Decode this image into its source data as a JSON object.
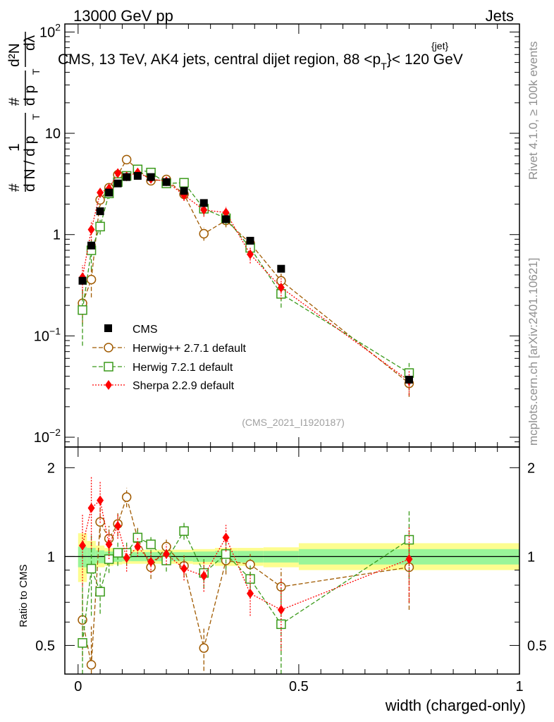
{
  "header": {
    "left": "13000 GeV pp",
    "right": "Jets",
    "title": "CMS, 13 TeV, AK4 jets, central dijet region, 88 <p",
    "title_sup": "{jet}",
    "title_sub": "T",
    "title_tail": "}< 120 GeV"
  },
  "side_labels": {
    "rivet": "Rivet 4.1.0, ≥ 100k events",
    "mcplots": "mcplots.cern.ch [arXiv:2401.10621]"
  },
  "analysis_tag": "(CMS_2021_I1920187)",
  "ylabel_main": {
    "hash": "#",
    "one": "1",
    "dN": "d N / d p",
    "T1": "T",
    "hash2": "#",
    "dp": "d p",
    "T2": "T",
    "d2N": "d²N",
    "dlambda": "dλ"
  },
  "ylabel_ratio": "Ratio to CMS",
  "xlabel": "width (charged-only)",
  "colors": {
    "cms": "#000000",
    "herwigpp": "#a05a00",
    "herwig7": "#3a9a1a",
    "sherpa": "#ff0000",
    "band_inner": "#99f599",
    "band_outer": "#fdfd8f"
  },
  "chart_data": [
    {
      "type": "scatter",
      "title": "CMS, 13 TeV, AK4 jets, central dijet region, 88 < pT jet < 120 GeV",
      "xlabel": "",
      "ylabel": "1/dN/dpT d2N/dpT dlambda",
      "yscale": "log",
      "ylim": [
        0.008,
        120
      ],
      "xlim": [
        -0.03,
        1.0
      ],
      "yticks": [
        {
          "value": 0.01,
          "base": "10",
          "exp": "−2"
        },
        {
          "value": 0.1,
          "base": "10",
          "exp": "−1"
        },
        {
          "value": 1,
          "base": "1",
          "exp": ""
        },
        {
          "value": 10,
          "base": "10",
          "exp": ""
        },
        {
          "value": 100,
          "base": "10",
          "exp": "2"
        }
      ],
      "legend": {
        "position": "middle-left",
        "entries": [
          "CMS",
          "Herwig++ 2.7.1 default",
          "Herwig 7.2.1 default",
          "Sherpa 2.2.9 default"
        ]
      },
      "x": [
        0.01,
        0.03,
        0.05,
        0.07,
        0.09,
        0.11,
        0.135,
        0.165,
        0.2,
        0.24,
        0.285,
        0.335,
        0.39,
        0.46,
        0.75
      ],
      "series": [
        {
          "name": "CMS",
          "marker": "filled-square",
          "values": [
            0.35,
            0.78,
            1.7,
            2.6,
            3.2,
            3.7,
            3.8,
            3.7,
            3.3,
            2.7,
            2.05,
            1.42,
            0.87,
            0.46,
            0.037
          ],
          "err": [
            0,
            0,
            0,
            0,
            0,
            0,
            0,
            0,
            0,
            0,
            0,
            0,
            0,
            0,
            0
          ]
        },
        {
          "name": "Herwig++ 2.7.1 default",
          "marker": "open-circle",
          "values": [
            0.21,
            0.36,
            2.2,
            2.9,
            3.9,
            5.5,
            4.4,
            3.4,
            3.5,
            2.5,
            1.02,
            1.38,
            0.82,
            0.35,
            0.034
          ],
          "err": [
            0.08,
            0.12,
            0.3,
            0.3,
            0.3,
            0.4,
            0.3,
            0.3,
            0.3,
            0.3,
            0.15,
            0.2,
            0.12,
            0.07,
            0.009
          ]
        },
        {
          "name": "Herwig 7.2.1 default",
          "marker": "open-square",
          "values": [
            0.18,
            0.7,
            1.2,
            2.55,
            3.3,
            3.8,
            4.4,
            4.1,
            3.2,
            3.25,
            1.8,
            1.45,
            0.74,
            0.26,
            0.043
          ],
          "err": [
            0.1,
            0.25,
            0.2,
            0.3,
            0.3,
            0.3,
            0.3,
            0.3,
            0.3,
            0.3,
            0.25,
            0.2,
            0.12,
            0.07,
            0.011
          ]
        },
        {
          "name": "Sherpa 2.2.9 default",
          "marker": "filled-diamond",
          "values": [
            0.38,
            1.12,
            2.6,
            2.85,
            4.05,
            3.75,
            4.1,
            3.55,
            3.35,
            2.45,
            1.75,
            1.65,
            0.64,
            0.3,
            0.036
          ],
          "err": [
            0.12,
            0.25,
            0.3,
            0.3,
            0.3,
            0.3,
            0.3,
            0.3,
            0.3,
            0.3,
            0.25,
            0.22,
            0.12,
            0.07,
            0.01
          ]
        }
      ]
    },
    {
      "type": "scatter",
      "title": "",
      "xlabel": "width (charged-only)",
      "ylabel": "Ratio to CMS",
      "yscale": "log",
      "ylim": [
        0.4,
        2.35
      ],
      "xlim": [
        -0.03,
        1.0
      ],
      "yticks": [
        0.5,
        1,
        2
      ],
      "xticks": [
        {
          "value": 0,
          "label": "0"
        },
        {
          "value": 0.5,
          "label": "0.5"
        },
        {
          "value": 1,
          "label": "1"
        }
      ],
      "reference_line": 1,
      "bands": [
        {
          "x0": 0.0,
          "x1": 0.02,
          "inner": [
            0.92,
            1.08
          ],
          "outer": [
            0.82,
            1.2
          ]
        },
        {
          "x0": 0.02,
          "x1": 0.04,
          "inner": [
            0.93,
            1.07
          ],
          "outer": [
            0.88,
            1.13
          ]
        },
        {
          "x0": 0.04,
          "x1": 0.06,
          "inner": [
            0.95,
            1.05
          ],
          "outer": [
            0.92,
            1.09
          ]
        },
        {
          "x0": 0.06,
          "x1": 0.08,
          "inner": [
            0.96,
            1.04
          ],
          "outer": [
            0.93,
            1.07
          ]
        },
        {
          "x0": 0.08,
          "x1": 0.1,
          "inner": [
            0.96,
            1.04
          ],
          "outer": [
            0.94,
            1.06
          ]
        },
        {
          "x0": 0.1,
          "x1": 0.12,
          "inner": [
            0.965,
            1.035
          ],
          "outer": [
            0.945,
            1.055
          ]
        },
        {
          "x0": 0.12,
          "x1": 0.15,
          "inner": [
            0.965,
            1.035
          ],
          "outer": [
            0.945,
            1.055
          ]
        },
        {
          "x0": 0.15,
          "x1": 0.18,
          "inner": [
            0.965,
            1.035
          ],
          "outer": [
            0.945,
            1.055
          ]
        },
        {
          "x0": 0.18,
          "x1": 0.22,
          "inner": [
            0.965,
            1.035
          ],
          "outer": [
            0.945,
            1.055
          ]
        },
        {
          "x0": 0.22,
          "x1": 0.26,
          "inner": [
            0.965,
            1.035
          ],
          "outer": [
            0.945,
            1.055
          ]
        },
        {
          "x0": 0.26,
          "x1": 0.31,
          "inner": [
            0.96,
            1.04
          ],
          "outer": [
            0.94,
            1.06
          ]
        },
        {
          "x0": 0.31,
          "x1": 0.36,
          "inner": [
            0.955,
            1.045
          ],
          "outer": [
            0.93,
            1.07
          ]
        },
        {
          "x0": 0.36,
          "x1": 0.42,
          "inner": [
            0.955,
            1.045
          ],
          "outer": [
            0.93,
            1.07
          ]
        },
        {
          "x0": 0.42,
          "x1": 0.5,
          "inner": [
            0.955,
            1.045
          ],
          "outer": [
            0.92,
            1.075
          ]
        },
        {
          "x0": 0.5,
          "x1": 1.0,
          "inner": [
            0.94,
            1.06
          ],
          "outer": [
            0.9,
            1.11
          ]
        }
      ],
      "x": [
        0.01,
        0.03,
        0.05,
        0.07,
        0.09,
        0.11,
        0.135,
        0.165,
        0.2,
        0.24,
        0.285,
        0.335,
        0.39,
        0.46,
        0.75
      ],
      "series": [
        {
          "name": "Herwig++ 2.7.1 default",
          "marker": "open-circle",
          "values": [
            0.61,
            0.43,
            1.31,
            1.15,
            1.29,
            1.59,
            1.15,
            0.92,
            1.08,
            0.93,
            0.49,
            0.97,
            0.94,
            0.79,
            0.92
          ],
          "err": [
            0.15,
            0.15,
            0.15,
            0.12,
            0.12,
            0.12,
            0.1,
            0.08,
            0.08,
            0.08,
            0.08,
            0.1,
            0.08,
            0.12,
            0.26
          ]
        },
        {
          "name": "Herwig 7.2.1 default",
          "marker": "open-square",
          "values": [
            0.51,
            0.91,
            0.76,
            0.98,
            1.03,
            1.03,
            1.16,
            1.1,
            0.97,
            1.22,
            0.88,
            1.02,
            0.84,
            0.59,
            1.14
          ],
          "err": [
            0.3,
            0.28,
            0.12,
            0.1,
            0.1,
            0.1,
            0.08,
            0.08,
            0.08,
            0.08,
            0.1,
            0.12,
            0.1,
            0.22,
            0.3
          ]
        },
        {
          "name": "Sherpa 2.2.9 default",
          "marker": "filled-diamond",
          "values": [
            1.09,
            1.46,
            1.55,
            1.1,
            1.27,
            0.99,
            1.08,
            0.96,
            1.02,
            0.91,
            0.86,
            1.16,
            0.75,
            0.66,
            0.98
          ],
          "err": [
            0.3,
            0.4,
            0.25,
            0.12,
            0.12,
            0.1,
            0.08,
            0.08,
            0.08,
            0.08,
            0.1,
            0.12,
            0.12,
            0.18,
            0.28
          ]
        }
      ]
    }
  ]
}
